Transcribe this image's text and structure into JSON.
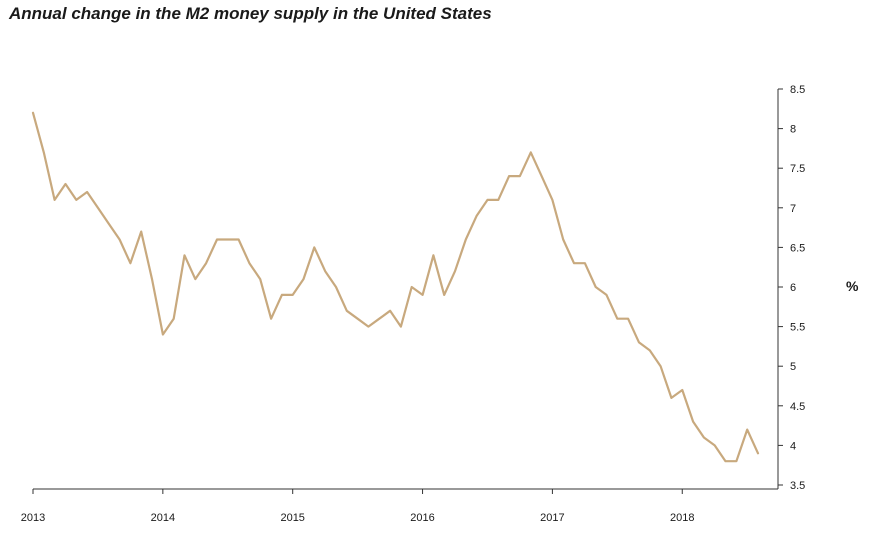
{
  "title": "Annual change in the M2 money supply in the United States",
  "colors": {
    "line": "#c8a97e",
    "axis": "#333333",
    "text": "#1a1a1a"
  },
  "chart_data": {
    "type": "line",
    "title": "Annual change in the M2 money supply in the United States",
    "xlabel": "",
    "ylabel": "%",
    "ylim": [
      3.5,
      8.5
    ],
    "xlim": [
      "2013-01",
      "2018-08"
    ],
    "y_ticks": [
      "3.5",
      "4",
      "4.5",
      "5",
      "5.5",
      "6",
      "6.5",
      "7",
      "7.5",
      "8",
      "8.5"
    ],
    "x_ticks": [
      "2013",
      "2014",
      "2015",
      "2016",
      "2017",
      "2018"
    ],
    "y_axis_position": "right",
    "grid": false,
    "legend": "none",
    "series": [
      {
        "color": "#c8a97e",
        "x": [
          "2013-01",
          "2013-02",
          "2013-03",
          "2013-04",
          "2013-05",
          "2013-06",
          "2013-07",
          "2013-08",
          "2013-09",
          "2013-10",
          "2013-11",
          "2013-12",
          "2014-01",
          "2014-02",
          "2014-03",
          "2014-04",
          "2014-05",
          "2014-06",
          "2014-07",
          "2014-08",
          "2014-09",
          "2014-10",
          "2014-11",
          "2014-12",
          "2015-01",
          "2015-02",
          "2015-03",
          "2015-04",
          "2015-05",
          "2015-06",
          "2015-07",
          "2015-08",
          "2015-09",
          "2015-10",
          "2015-11",
          "2015-12",
          "2016-01",
          "2016-02",
          "2016-03",
          "2016-04",
          "2016-05",
          "2016-06",
          "2016-07",
          "2016-08",
          "2016-09",
          "2016-10",
          "2016-11",
          "2016-12",
          "2017-01",
          "2017-02",
          "2017-03",
          "2017-04",
          "2017-05",
          "2017-06",
          "2017-07",
          "2017-08",
          "2017-09",
          "2017-10",
          "2017-11",
          "2017-12",
          "2018-01",
          "2018-02",
          "2018-03",
          "2018-04",
          "2018-05",
          "2018-06",
          "2018-07",
          "2018-08"
        ],
        "values": [
          8.2,
          7.7,
          7.1,
          7.3,
          7.1,
          7.2,
          7.0,
          6.8,
          6.6,
          6.3,
          6.7,
          6.1,
          5.4,
          5.6,
          6.4,
          6.1,
          6.3,
          6.6,
          6.6,
          6.6,
          6.3,
          6.1,
          5.6,
          5.9,
          5.9,
          6.1,
          6.5,
          6.2,
          6.0,
          5.7,
          5.6,
          5.5,
          5.6,
          5.7,
          5.5,
          6.0,
          5.9,
          6.4,
          5.9,
          6.2,
          6.6,
          6.9,
          7.1,
          7.1,
          7.4,
          7.4,
          7.7,
          7.4,
          7.1,
          6.6,
          6.3,
          6.3,
          6.0,
          5.9,
          5.6,
          5.6,
          5.3,
          5.2,
          5.0,
          4.6,
          4.7,
          4.3,
          4.1,
          4.0,
          3.8,
          3.8,
          4.2,
          3.9
        ]
      }
    ]
  }
}
